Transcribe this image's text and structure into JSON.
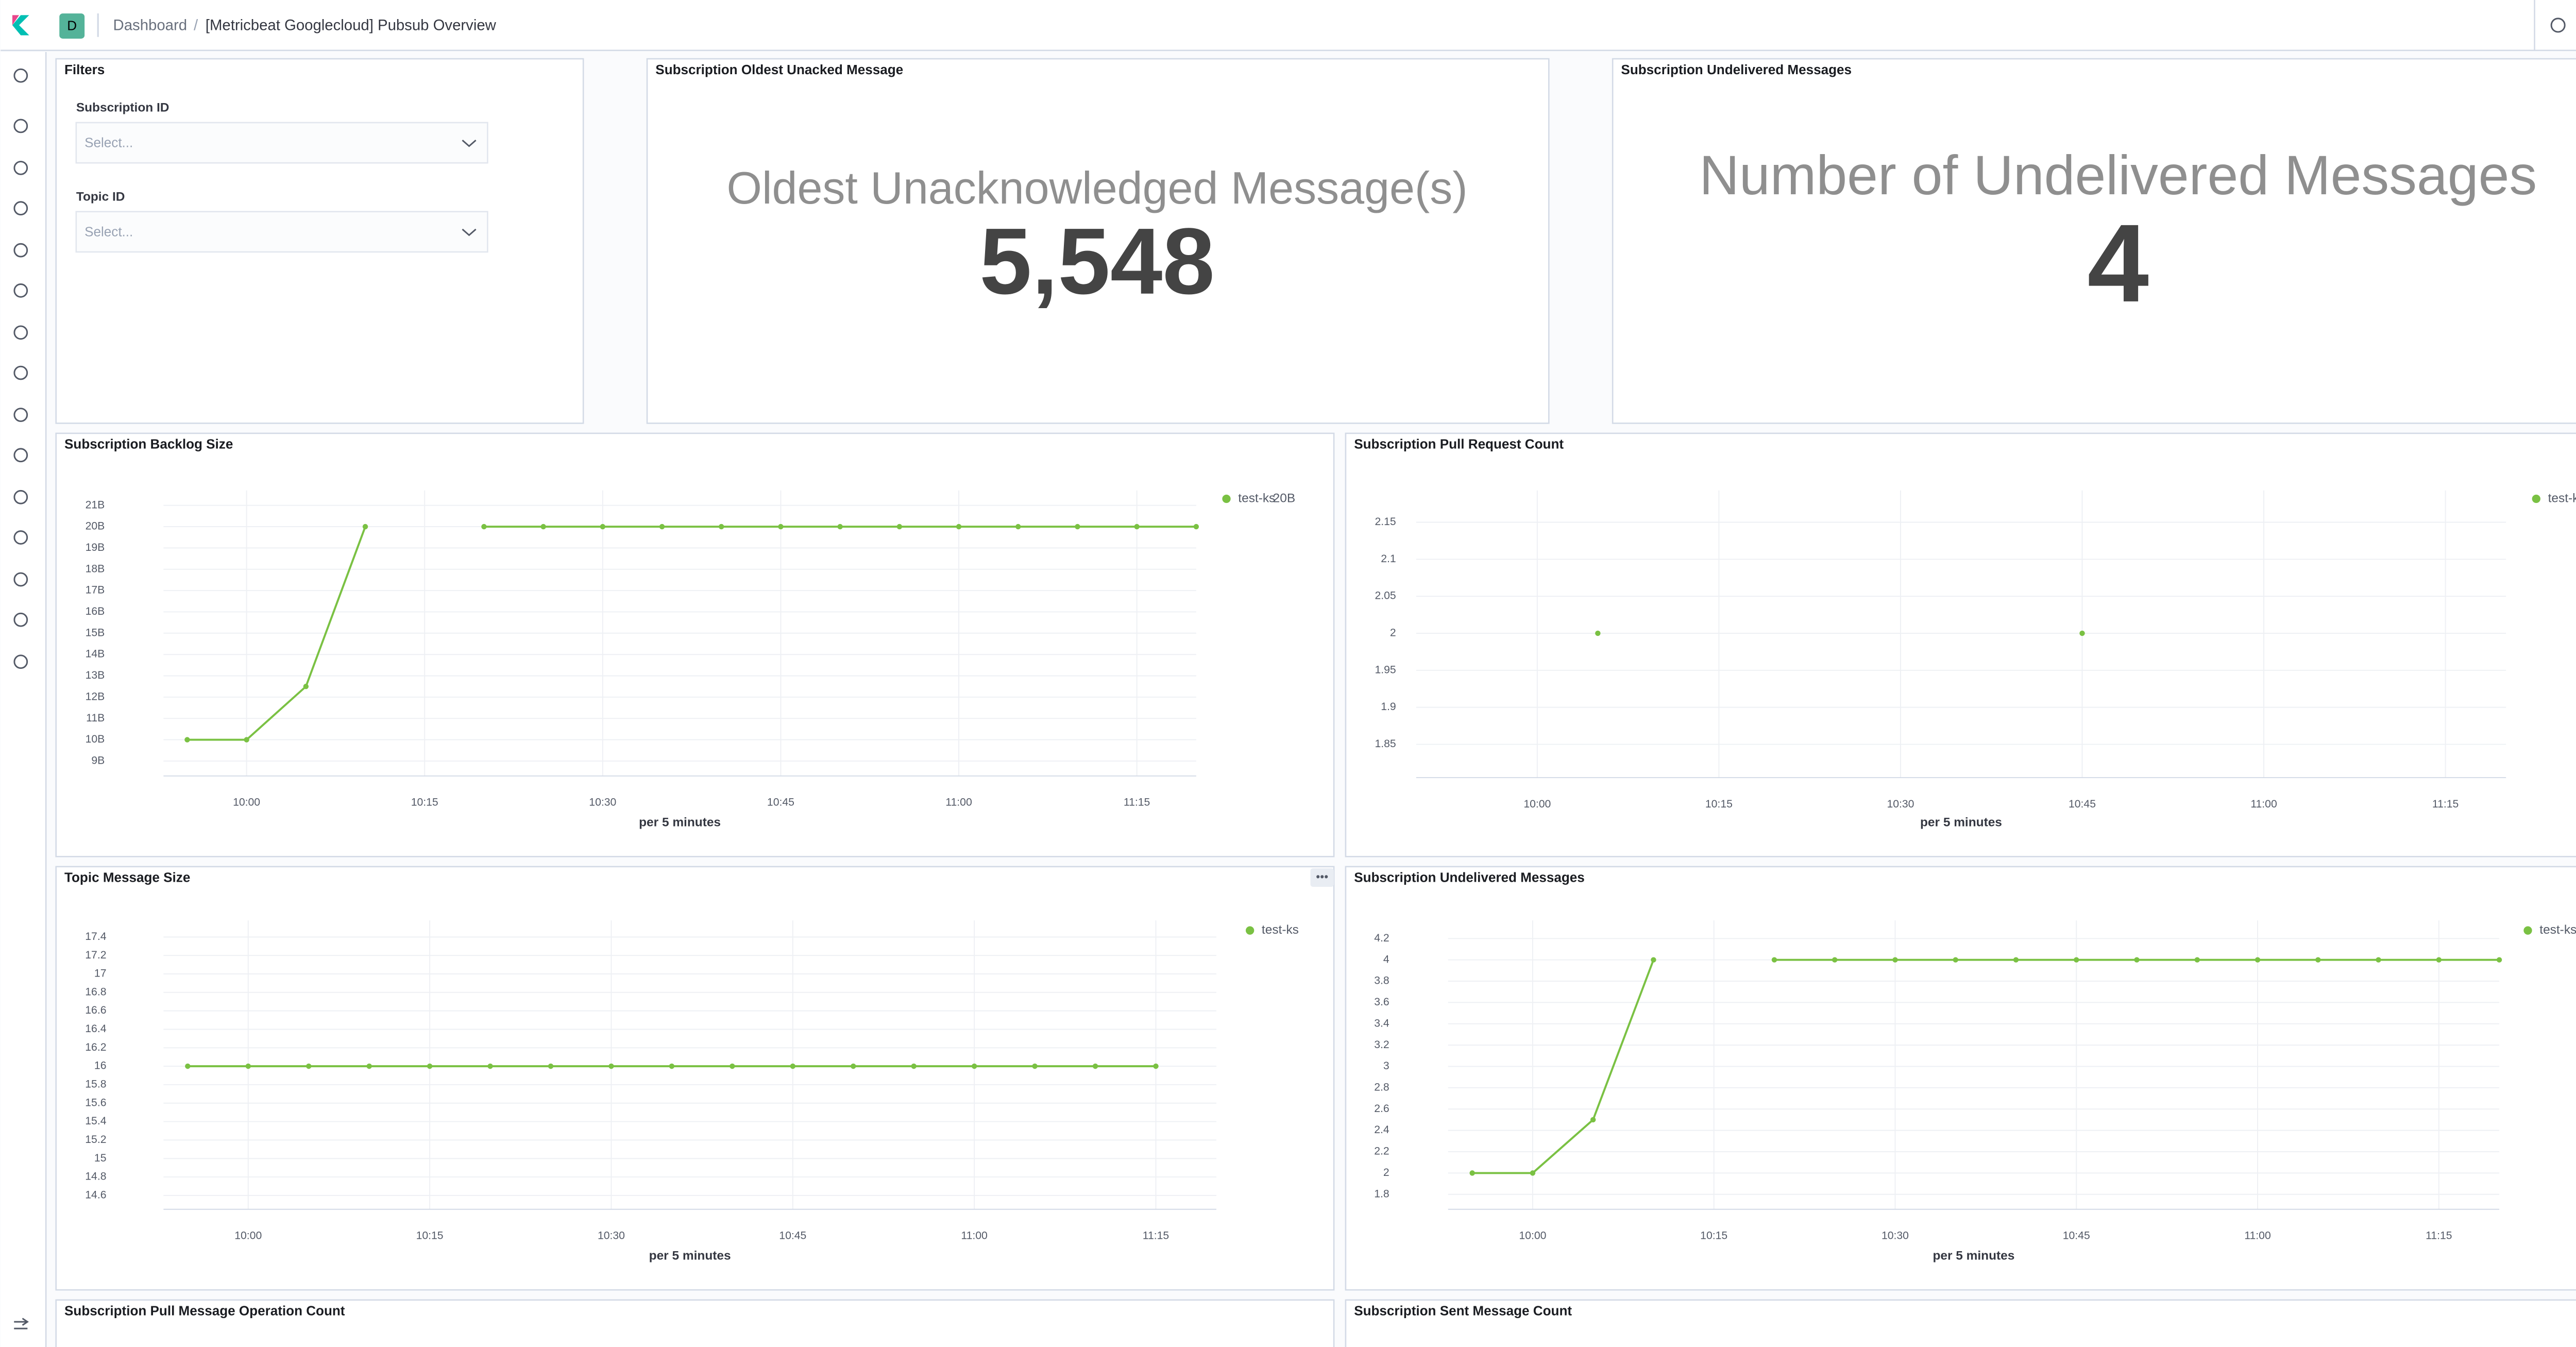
{
  "header": {
    "avatar": "D",
    "breadcrumb": "Dashboard",
    "title": "[Metricbeat Googlecloud] Pubsub Overview"
  },
  "filters": {
    "title": "Filters",
    "controls": [
      {
        "label": "Subscription ID",
        "placeholder": "Select..."
      },
      {
        "label": "Topic ID",
        "placeholder": "Select..."
      }
    ]
  },
  "metrics": [
    {
      "title": "Subscription Oldest Unacked Message",
      "label": "Oldest Unacknowledged Message(s)",
      "value": 5548,
      "value_label": "5,548"
    },
    {
      "title": "Subscription Undelivered Messages",
      "label": "Number of Undelivered Messages",
      "value": 4
    }
  ],
  "chart_data": [
    {
      "type": "line",
      "title": "Subscription Backlog Size",
      "x_label": "per 5 minutes",
      "grid": true,
      "legend": "top-right",
      "x": [
        "09:55",
        "10:00",
        "10:05",
        "10:10",
        "10:15",
        "10:20",
        "10:25",
        "10:30",
        "10:35",
        "10:40",
        "10:45",
        "10:50",
        "10:55",
        "11:00",
        "11:05",
        "11:10",
        "11:15",
        "11:20"
      ],
      "series": [
        {
          "name": "test-ks",
          "color": "#7ac143",
          "values": [
            10,
            10,
            12.5,
            20,
            null,
            20,
            20,
            20,
            20,
            20,
            20,
            20,
            20,
            20,
            20,
            20,
            20,
            20
          ],
          "legend_value": 20,
          "legend_value_label": "20B"
        }
      ],
      "xlim": [
        "09:53",
        "11:20"
      ],
      "xticks": [
        "10:00",
        "10:15",
        "10:30",
        "10:45",
        "11:00",
        "11:15"
      ],
      "ylim": [
        8.3,
        21.7
      ],
      "yticks": [
        {
          "value": 9,
          "label": "9B"
        },
        {
          "value": 10,
          "label": "10B"
        },
        {
          "value": 11,
          "label": "11B"
        },
        {
          "value": 12,
          "label": "12B"
        },
        {
          "value": 13,
          "label": "13B"
        },
        {
          "value": 14,
          "label": "14B"
        },
        {
          "value": 15,
          "label": "15B"
        },
        {
          "value": 16,
          "label": "16B"
        },
        {
          "value": 17,
          "label": "17B"
        },
        {
          "value": 18,
          "label": "18B"
        },
        {
          "value": 19,
          "label": "19B"
        },
        {
          "value": 20,
          "label": "20B"
        },
        {
          "value": 21,
          "label": "21B"
        }
      ]
    },
    {
      "type": "line",
      "title": "Subscription Pull Request Count",
      "x_label": "per 5 minutes",
      "grid": true,
      "legend": "top-right",
      "x": [
        "10:05",
        "10:10",
        "10:15",
        "10:20",
        "10:25",
        "10:30",
        "10:35",
        "10:40",
        "10:45"
      ],
      "series": [
        {
          "name": "test-ks",
          "color": "#7ac143",
          "values": [
            2,
            null,
            null,
            null,
            null,
            null,
            null,
            null,
            2
          ]
        }
      ],
      "xlim": [
        "09:50",
        "11:20"
      ],
      "xticks": [
        "10:00",
        "10:15",
        "10:30",
        "10:45",
        "11:00",
        "11:15"
      ],
      "ylim": [
        1.805,
        2.193
      ],
      "yticks": [
        1.85,
        1.9,
        1.95,
        2,
        2.05,
        2.1,
        2.15
      ]
    },
    {
      "type": "line",
      "title": "Topic Message Size",
      "x_label": "per 5 minutes",
      "grid": true,
      "legend": "top-right",
      "x": [
        "09:55",
        "10:00",
        "10:05",
        "10:10",
        "10:15",
        "10:20",
        "10:25",
        "10:30",
        "10:35",
        "10:40",
        "10:45",
        "10:50",
        "10:55",
        "11:00",
        "11:05",
        "11:10",
        "11:15"
      ],
      "series": [
        {
          "name": "test-ks",
          "color": "#7ac143",
          "values": [
            16,
            16,
            16,
            16,
            16,
            16,
            16,
            16,
            16,
            16,
            16,
            16,
            16,
            16,
            16,
            16,
            16
          ]
        }
      ],
      "xlim": [
        "09:53",
        "11:20"
      ],
      "xticks": [
        "10:00",
        "10:15",
        "10:30",
        "10:45",
        "11:00",
        "11:15"
      ],
      "ylim": [
        14.45,
        17.58
      ],
      "yticks": [
        14.6,
        14.8,
        15,
        15.2,
        15.4,
        15.6,
        15.8,
        16,
        16.2,
        16.4,
        16.6,
        16.8,
        17,
        17.2,
        17.4
      ]
    },
    {
      "type": "line",
      "title": "Subscription Undelivered Messages",
      "x_label": "per 5 minutes",
      "grid": true,
      "legend": "top-right",
      "x": [
        "09:55",
        "10:00",
        "10:05",
        "10:10",
        "10:15",
        "10:20",
        "10:25",
        "10:30",
        "10:35",
        "10:40",
        "10:45",
        "10:50",
        "10:55",
        "11:00",
        "11:05",
        "11:10",
        "11:15",
        "11:20"
      ],
      "series": [
        {
          "name": "test-ks",
          "color": "#7ac143",
          "values": [
            2,
            2,
            2.5,
            4,
            null,
            4,
            4,
            4,
            4,
            4,
            4,
            4,
            4,
            4,
            4,
            4,
            4,
            4
          ],
          "legend_value": 4
        }
      ],
      "xlim": [
        "09:53",
        "11:20"
      ],
      "xticks": [
        "10:00",
        "10:15",
        "10:30",
        "10:45",
        "11:00",
        "11:15"
      ],
      "ylim": [
        1.66,
        4.37
      ],
      "yticks": [
        1.8,
        2,
        2.2,
        2.4,
        2.6,
        2.8,
        3,
        3.2,
        3.4,
        3.6,
        3.8,
        4,
        4.2
      ]
    }
  ],
  "pending_panels": [
    {
      "title": "Subscription Pull Message Operation Count"
    },
    {
      "title": "Subscription Sent Message Count"
    }
  ]
}
